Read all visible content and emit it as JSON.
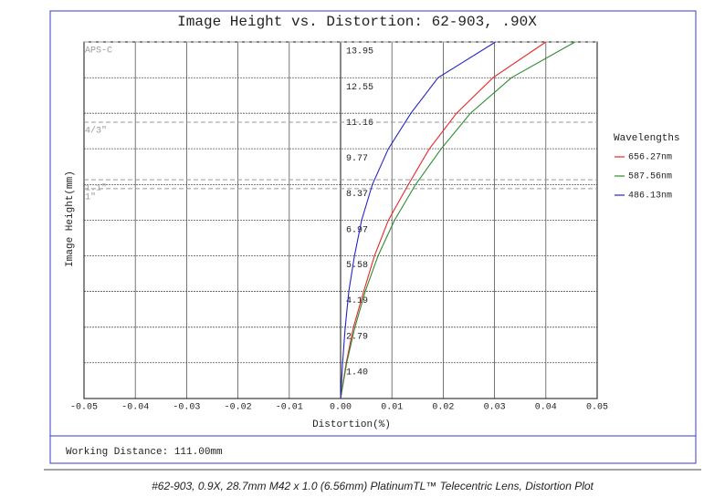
{
  "chart_data": {
    "type": "line",
    "title": "Image Height vs. Distortion: 62-903, .90X",
    "x_label": "Distortion(%)",
    "y_label": "Image Height(mm)",
    "xlim": [
      -0.05,
      0.05
    ],
    "xticks": [
      -0.05,
      -0.04,
      -0.03,
      -0.02,
      -0.01,
      {
        "value": 0,
        "label": "0.00"
      },
      0.01,
      0.02,
      0.03,
      0.04,
      0.05
    ],
    "ylim": [
      0,
      13.95
    ],
    "yticks": [
      {
        "value": 1.4,
        "label": "1.40"
      },
      2.79,
      4.19,
      5.58,
      6.97,
      8.37,
      9.77,
      11.16,
      12.55,
      13.95
    ],
    "grid": true,
    "legend_title": "Wavelengths",
    "legend_position": "right",
    "y": [
      0,
      1.4,
      2.79,
      4.19,
      5.58,
      6.97,
      8.37,
      9.77,
      11.16,
      12.55,
      13.95
    ],
    "series": [
      {
        "name": "656.27nm",
        "color": "#e8262a",
        "x": [
          0,
          0.0011,
          0.0025,
          0.0045,
          0.0066,
          0.0093,
          0.0132,
          0.0173,
          0.0226,
          0.0297,
          0.04
        ]
      },
      {
        "name": "587.56nm",
        "color": "#2e8b2e",
        "x": [
          0,
          0.0012,
          0.0028,
          0.0048,
          0.0073,
          0.0105,
          0.0146,
          0.0196,
          0.0253,
          0.0333,
          0.0457
        ]
      },
      {
        "name": "486.13nm",
        "color": "#2323c8",
        "x": [
          0,
          0.0004,
          0.0009,
          0.0016,
          0.0027,
          0.0041,
          0.0062,
          0.0093,
          0.0137,
          0.019,
          0.0302
        ]
      }
    ],
    "sensor_lines": [
      {
        "label": "APS-C",
        "value": 13.95
      },
      {
        "label": "4/3\"",
        "value": 10.81
      },
      {
        "label": "1.1\"",
        "value": 8.56
      },
      {
        "label": "1\"",
        "value": 8.21
      }
    ],
    "footer": "Working Distance: 111.00mm",
    "caption": "#62-903, 0.9X, 28.7mm M42 x 1.0 (6.56mm) PlatinumTL™ Telecentric Lens, Distortion Plot"
  }
}
